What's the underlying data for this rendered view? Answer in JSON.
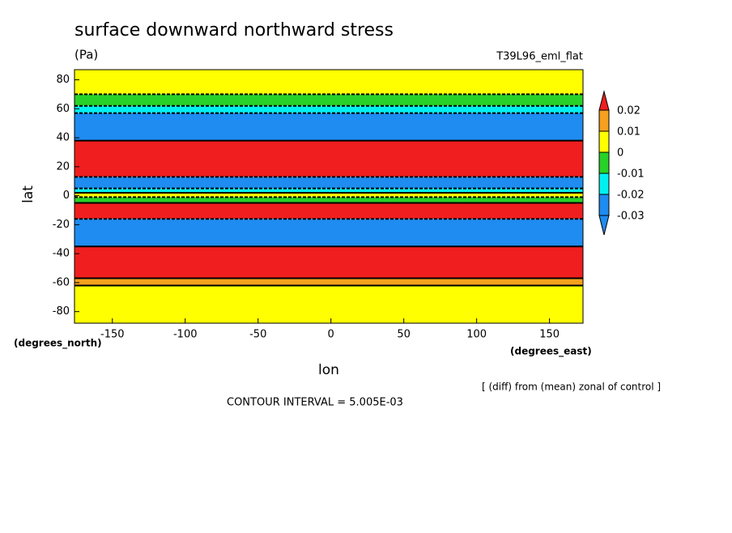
{
  "chart_data": {
    "type": "contour",
    "title": "surface downward northward stress",
    "units": "(Pa)",
    "dataset": "T39L96_eml_flat",
    "x_label": "lon",
    "y_label": "lat",
    "x_units": "(degrees_east)",
    "y_units": "(degrees_north)",
    "note": "[ (diff) from (mean) zonal of control ]",
    "contour_interval": "CONTOUR INTERVAL = 5.005E-03",
    "xlim": [
      -176,
      173
    ],
    "ylim": [
      -88,
      87
    ],
    "xticks": [
      -150,
      -100,
      -50,
      0,
      50,
      100,
      150
    ],
    "yticks": [
      -80,
      -60,
      -40,
      -20,
      0,
      20,
      40,
      60,
      80
    ],
    "levels": [
      -0.03,
      -0.02,
      -0.01,
      0,
      0.01,
      0.02
    ],
    "colors": [
      "#1e8cf0",
      "#1e8cf0",
      "#00f0f0",
      "#28d228",
      "#ffff00",
      "#f5a01e",
      "#f01e1e"
    ],
    "field": {
      "lat_edges": [
        87,
        70,
        62,
        57,
        38,
        13,
        5,
        2,
        -1,
        -5,
        -16,
        -35,
        -57,
        -62,
        -88
      ],
      "values": [
        0.005,
        -0.005,
        -0.015,
        -0.04,
        0.04,
        -0.04,
        -0.015,
        0.005,
        -0.005,
        0.04,
        -0.04,
        0.04,
        0.015,
        0.005
      ]
    }
  }
}
